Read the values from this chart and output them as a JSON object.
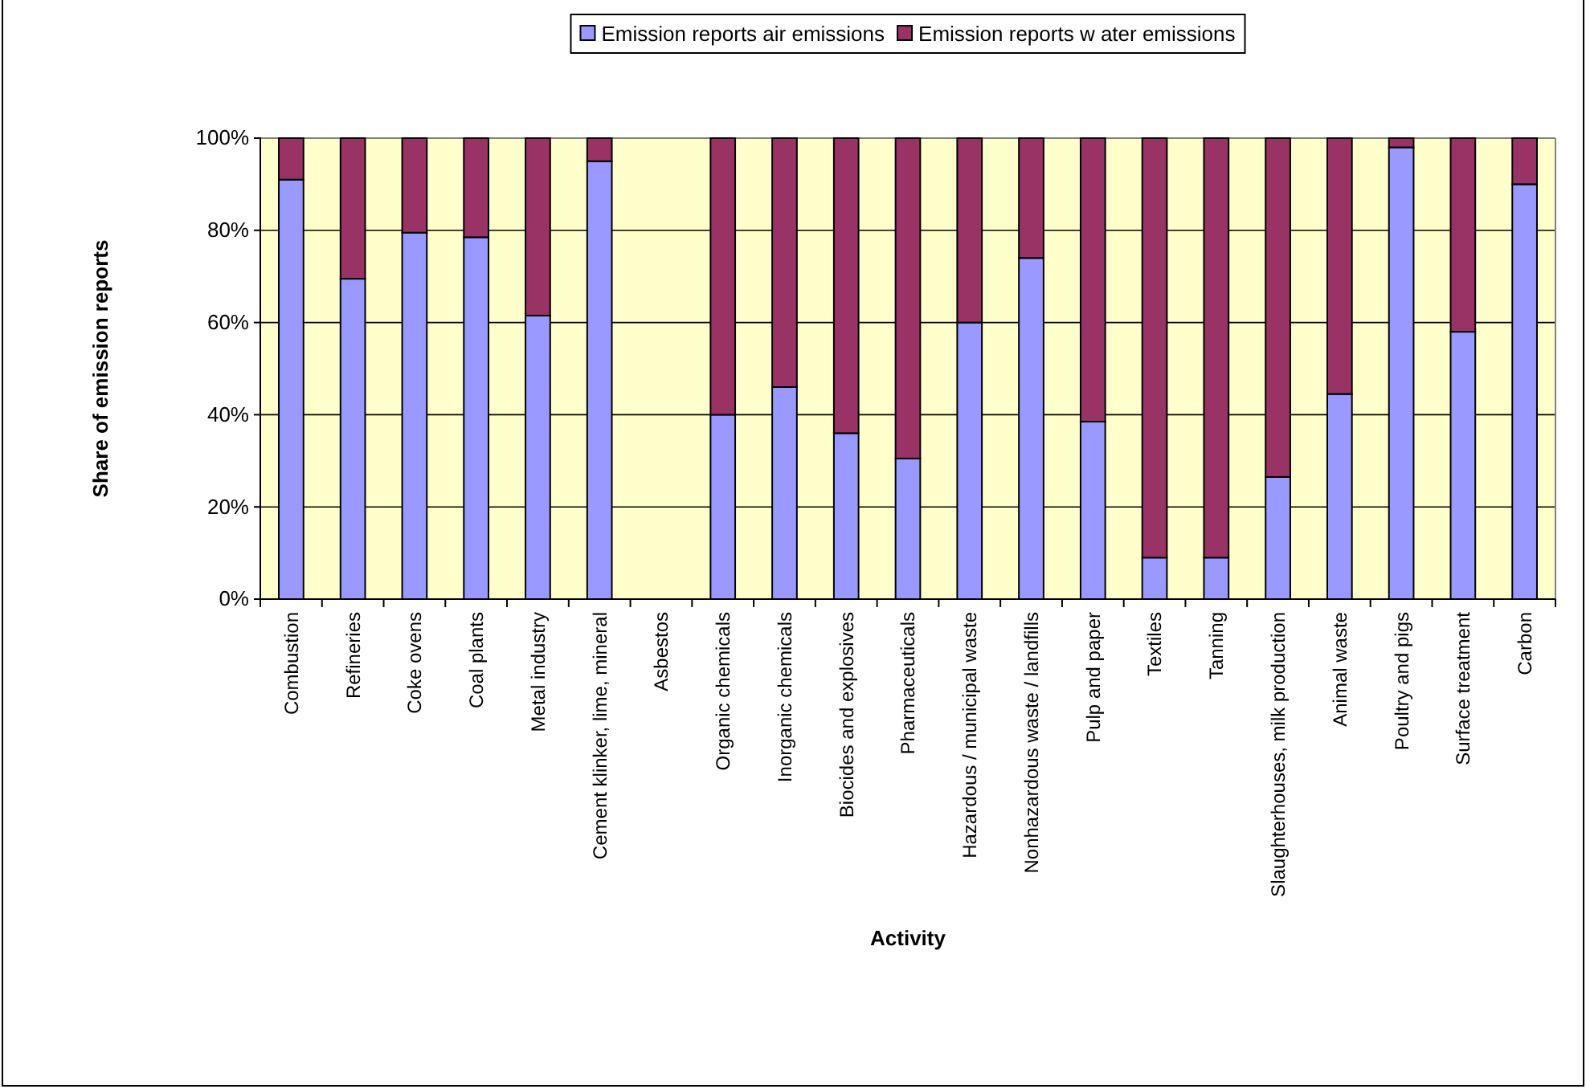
{
  "chart_data": {
    "type": "bar",
    "stacked": true,
    "xlabel": "Activity",
    "ylabel": "Share of emission reports",
    "categories": [
      "Combustion",
      "Refineries",
      "Coke ovens",
      "Coal plants",
      "Metal industry",
      "Cement klinker, lime, mineral",
      "Asbestos",
      "Organic chemicals",
      "Inorganic chemicals",
      "Biocides and explosives",
      "Pharmaceuticals",
      "Hazardous / municipal waste",
      "Nonhazardous waste / landfills",
      "Pulp and paper",
      "Textiles",
      "Tanning",
      "Slaughterhouses, milk production",
      "Animal waste",
      "Poultry and pigs",
      "Surface treatment",
      "Carbon"
    ],
    "series": [
      {
        "name": "Emission reports air emissions",
        "color": "#9999ff",
        "values": [
          91,
          69.5,
          79.5,
          78.5,
          61.5,
          95,
          null,
          40,
          46,
          36,
          30.5,
          60,
          74,
          38.5,
          9,
          9,
          26.5,
          44.5,
          98,
          58,
          90
        ]
      },
      {
        "name": "Emission reports w ater emissions",
        "color": "#993366",
        "values": [
          9,
          30.5,
          20.5,
          21.5,
          38.5,
          5,
          null,
          60,
          54,
          64,
          69.5,
          40,
          26,
          61.5,
          91,
          91,
          73.5,
          55.5,
          2,
          42,
          10
        ]
      }
    ],
    "ylim": [
      0,
      100
    ],
    "yticks": [
      {
        "value": 0,
        "label": "0%"
      },
      {
        "value": 20,
        "label": "20%"
      },
      {
        "value": 40,
        "label": "40%"
      },
      {
        "value": 60,
        "label": "60%"
      },
      {
        "value": 80,
        "label": "80%"
      },
      {
        "value": 100,
        "label": "100%"
      }
    ],
    "grid": "y",
    "legend": "top"
  }
}
